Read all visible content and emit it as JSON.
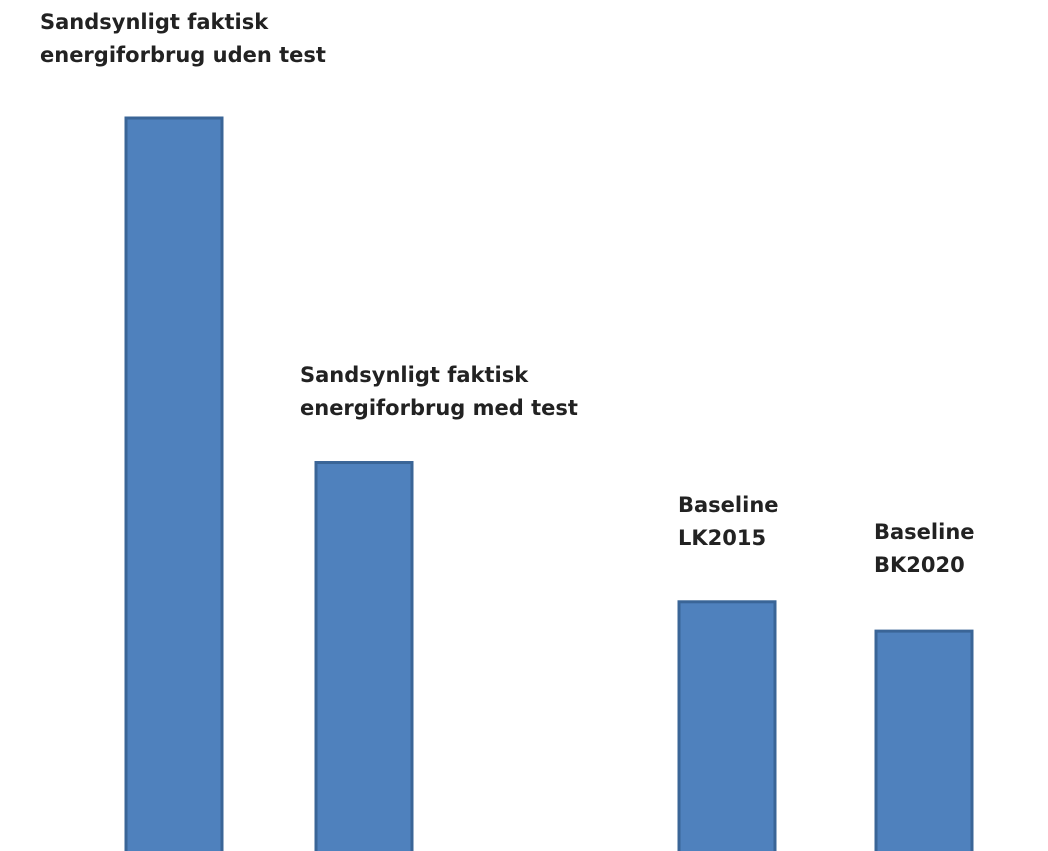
{
  "chart_data": {
    "type": "bar",
    "title": "",
    "xlabel": "",
    "ylabel": "",
    "ylim": [
      0,
      100
    ],
    "grid": false,
    "legend": "none",
    "categories": [
      [
        "Sandsynligt faktisk",
        "energiforbrug uden test"
      ],
      [
        "Sandsynligt faktisk",
        "energiforbrug med test"
      ],
      [
        "Baseline",
        "LK2015"
      ],
      [
        "Baseline",
        "BK2020"
      ]
    ],
    "values": [
      100,
      53,
      34,
      30
    ],
    "bar_color": "#4F81BD",
    "bar_edge_color": "#3A6597"
  }
}
